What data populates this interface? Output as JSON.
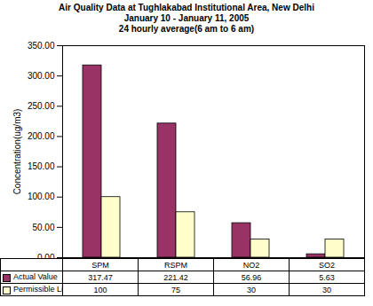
{
  "chart_data": {
    "type": "bar",
    "title": "Air Quality Data at Tughlakabad Institutional Area, New Delhi",
    "subtitle": "January 10  - January 11, 2005\n24 hourly average(6 am to 6 am)",
    "ylabel": "Concentration(ug/m3)",
    "categories": [
      "SPM",
      "RSPM",
      "NO2",
      "SO2"
    ],
    "series": [
      {
        "name": "Actual Value",
        "color": "#993366",
        "values": [
          317.47,
          221.42,
          56.96,
          5.63
        ]
      },
      {
        "name": "Permissible Limit",
        "color": "#FFFFCC",
        "values": [
          100,
          75,
          30,
          30
        ]
      }
    ],
    "ylim": [
      0,
      350
    ],
    "yticks": [
      {
        "value": 0,
        "label": "0.00"
      },
      {
        "value": 50,
        "label": "50.00"
      },
      {
        "value": 100,
        "label": "100.00"
      },
      {
        "value": 150,
        "label": "150.00"
      },
      {
        "value": 200,
        "label": "200.00"
      },
      {
        "value": 250,
        "label": "250.00"
      },
      {
        "value": 300,
        "label": "300.00"
      },
      {
        "value": 350,
        "label": "350.00"
      }
    ],
    "grid": false
  }
}
